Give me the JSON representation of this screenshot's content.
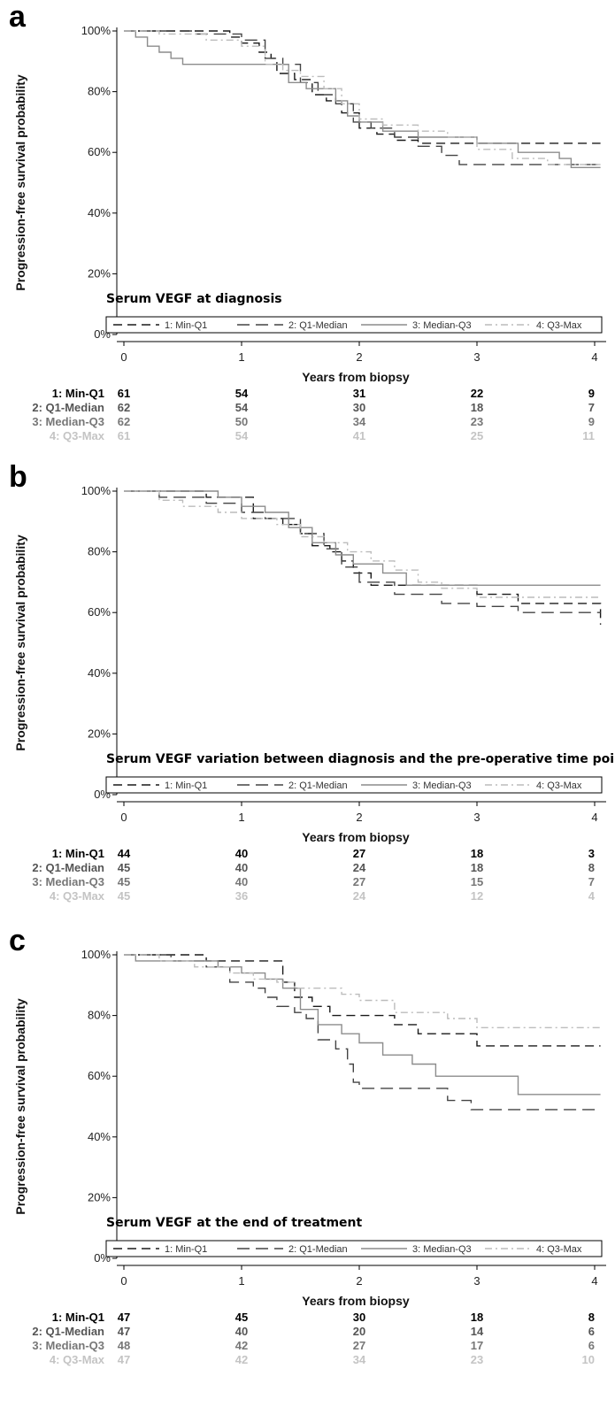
{
  "chart_data": [
    {
      "type": "line",
      "panel": "a",
      "annotation": "Serum VEGF at diagnosis",
      "xlabel": "Years from biopsy",
      "ylabel": "Progression-free survival probability",
      "xlim": [
        0,
        4
      ],
      "ylim": [
        0,
        100
      ],
      "x_ticks": [
        "0",
        "1",
        "2",
        "3",
        "4"
      ],
      "y_ticks": [
        "0%",
        "20%",
        "40%",
        "60%",
        "80%",
        "100%"
      ],
      "legend_position": "bottom",
      "series": [
        {
          "name": "1: Min-Q1",
          "color": "#1a1a1a",
          "dash": "10,6",
          "x": [
            0,
            0.5,
            0.9,
            1.0,
            1.15,
            1.25,
            1.3,
            1.45,
            1.6,
            1.72,
            1.85,
            2.0,
            2.15,
            2.3,
            2.5,
            4.05
          ],
          "y": [
            100,
            100,
            98,
            96,
            93,
            91,
            86,
            84,
            79,
            77,
            73,
            68,
            66,
            64,
            63,
            63
          ],
          "risk": [
            "61",
            "54",
            "31",
            "22",
            "9"
          ]
        },
        {
          "name": "2: Q1-Median",
          "color": "#444444",
          "dash": "14,7",
          "x": [
            0,
            0.6,
            1.0,
            1.2,
            1.35,
            1.5,
            1.65,
            1.8,
            1.95,
            2.1,
            2.3,
            2.5,
            2.7,
            2.85,
            3.1,
            4.05
          ],
          "y": [
            100,
            99,
            97,
            91,
            89,
            83,
            79,
            76,
            70,
            68,
            65,
            62,
            59,
            56,
            56,
            56
          ],
          "risk": [
            "62",
            "54",
            "30",
            "18",
            "7"
          ]
        },
        {
          "name": "3: Median-Q3",
          "color": "#8c8c8c",
          "dash": "",
          "x": [
            0,
            0.1,
            0.2,
            0.3,
            0.4,
            0.5,
            0.9,
            1.2,
            1.4,
            1.55,
            1.7,
            1.8,
            1.9,
            2.0,
            2.2,
            2.5,
            2.8,
            3.0,
            3.35,
            3.7,
            3.8,
            4.05
          ],
          "y": [
            100,
            98,
            95,
            93,
            91,
            89,
            89,
            89,
            83,
            81,
            81,
            77,
            72,
            70,
            67,
            65,
            65,
            63,
            60,
            58,
            55,
            55
          ],
          "risk": [
            "62",
            "50",
            "34",
            "23",
            "9"
          ]
        },
        {
          "name": "4: Q3-Max",
          "color": "#bcbcbc",
          "dash": "8,4,2,4",
          "x": [
            0,
            0.3,
            0.7,
            1.0,
            1.2,
            1.35,
            1.5,
            1.7,
            1.85,
            2.0,
            2.2,
            2.5,
            2.75,
            3.0,
            3.3,
            3.6,
            4.05
          ],
          "y": [
            100,
            99,
            97,
            95,
            89,
            87,
            85,
            81,
            76,
            71,
            69,
            67,
            65,
            61,
            58,
            56,
            56
          ],
          "risk": [
            "61",
            "54",
            "41",
            "25",
            "11"
          ]
        }
      ]
    },
    {
      "type": "line",
      "panel": "b",
      "annotation": "Serum VEGF variation between diagnosis and the pre-operative time point",
      "xlabel": "Years from biopsy",
      "ylabel": "Progression-free survival probability",
      "xlim": [
        0,
        4
      ],
      "ylim": [
        0,
        100
      ],
      "x_ticks": [
        "0",
        "1",
        "2",
        "3",
        "4"
      ],
      "y_ticks": [
        "0%",
        "20%",
        "40%",
        "60%",
        "80%",
        "100%"
      ],
      "legend_position": "bottom",
      "series": [
        {
          "name": "1: Min-Q1",
          "color": "#1a1a1a",
          "dash": "10,6",
          "x": [
            0,
            0.7,
            1.1,
            1.35,
            1.5,
            1.6,
            1.75,
            1.85,
            1.95,
            2.1,
            2.6,
            3.0,
            3.35,
            4.05
          ],
          "y": [
            100,
            98,
            91,
            89,
            86,
            82,
            80,
            77,
            73,
            69,
            69,
            66,
            63,
            56
          ],
          "risk": [
            "44",
            "40",
            "27",
            "18",
            "3"
          ]
        },
        {
          "name": "2: Q1-Median",
          "color": "#444444",
          "dash": "14,7",
          "x": [
            0,
            0.3,
            0.7,
            1.0,
            1.2,
            1.5,
            1.7,
            1.85,
            2.0,
            2.3,
            2.7,
            3.0,
            3.35,
            4.05
          ],
          "y": [
            100,
            98,
            96,
            93,
            91,
            86,
            81,
            75,
            70,
            66,
            63,
            62,
            60,
            60
          ],
          "risk": [
            "45",
            "40",
            "24",
            "18",
            "8"
          ]
        },
        {
          "name": "3: Median-Q3",
          "color": "#8c8c8c",
          "dash": "",
          "x": [
            0,
            0.5,
            0.8,
            1.0,
            1.2,
            1.4,
            1.6,
            1.8,
            1.95,
            2.2,
            2.4,
            2.6,
            4.05
          ],
          "y": [
            100,
            100,
            98,
            95,
            93,
            88,
            83,
            79,
            76,
            73,
            69,
            69,
            69
          ],
          "risk": [
            "45",
            "40",
            "27",
            "15",
            "7"
          ]
        },
        {
          "name": "4: Q3-Max",
          "color": "#bcbcbc",
          "dash": "8,4,2,4",
          "x": [
            0,
            0.3,
            0.5,
            0.8,
            1.0,
            1.3,
            1.5,
            1.7,
            1.9,
            2.1,
            2.3,
            2.5,
            2.7,
            3.0,
            4.05
          ],
          "y": [
            100,
            97,
            95,
            93,
            91,
            89,
            85,
            83,
            80,
            77,
            74,
            70,
            68,
            65,
            65
          ],
          "risk": [
            "45",
            "36",
            "24",
            "12",
            "4"
          ]
        }
      ]
    },
    {
      "type": "line",
      "panel": "c",
      "annotation": "Serum VEGF at the end of treatment",
      "xlabel": "Years from biopsy",
      "ylabel": "Progression-free survival probability",
      "xlim": [
        0,
        4
      ],
      "ylim": [
        0,
        100
      ],
      "x_ticks": [
        "0",
        "1",
        "2",
        "3",
        "4"
      ],
      "y_ticks": [
        "0%",
        "20%",
        "40%",
        "60%",
        "80%",
        "100%"
      ],
      "legend_position": "bottom",
      "series": [
        {
          "name": "1: Min-Q1",
          "color": "#1a1a1a",
          "dash": "10,6",
          "x": [
            0,
            0.7,
            1.0,
            1.2,
            1.35,
            1.45,
            1.6,
            1.75,
            1.95,
            2.3,
            2.5,
            3.0,
            4.05
          ],
          "y": [
            100,
            98,
            98,
            98,
            91,
            86,
            83,
            80,
            80,
            77,
            74,
            70,
            70
          ],
          "risk": [
            "47",
            "45",
            "30",
            "18",
            "8"
          ]
        },
        {
          "name": "2: Q1-Median",
          "color": "#444444",
          "dash": "14,7",
          "x": [
            0,
            0.4,
            0.7,
            0.9,
            1.1,
            1.2,
            1.3,
            1.45,
            1.55,
            1.65,
            1.8,
            1.9,
            1.95,
            2.0,
            2.75,
            2.95,
            3.1,
            4.05
          ],
          "y": [
            100,
            98,
            96,
            91,
            89,
            86,
            83,
            81,
            79,
            72,
            69,
            64,
            58,
            56,
            52,
            49,
            49,
            49
          ],
          "risk": [
            "47",
            "40",
            "20",
            "14",
            "6"
          ]
        },
        {
          "name": "3: Median-Q3",
          "color": "#8c8c8c",
          "dash": "",
          "x": [
            0,
            0.1,
            0.5,
            0.8,
            1.0,
            1.2,
            1.35,
            1.5,
            1.65,
            1.85,
            2.0,
            2.2,
            2.45,
            2.65,
            3.0,
            3.35,
            4.05
          ],
          "y": [
            100,
            98,
            98,
            96,
            94,
            92,
            89,
            82,
            77,
            74,
            71,
            67,
            64,
            60,
            60,
            54,
            54
          ],
          "risk": [
            "48",
            "42",
            "27",
            "17",
            "6"
          ]
        },
        {
          "name": "4: Q3-Max",
          "color": "#bcbcbc",
          "dash": "8,4,2,4",
          "x": [
            0,
            0.3,
            0.6,
            0.9,
            1.1,
            1.3,
            1.45,
            1.65,
            1.85,
            2.0,
            2.3,
            2.5,
            2.75,
            3.0,
            4.05
          ],
          "y": [
            100,
            98,
            96,
            94,
            92,
            91,
            89,
            89,
            87,
            85,
            81,
            81,
            79,
            76,
            76
          ],
          "risk": [
            "47",
            "42",
            "34",
            "23",
            "10"
          ]
        }
      ]
    }
  ]
}
